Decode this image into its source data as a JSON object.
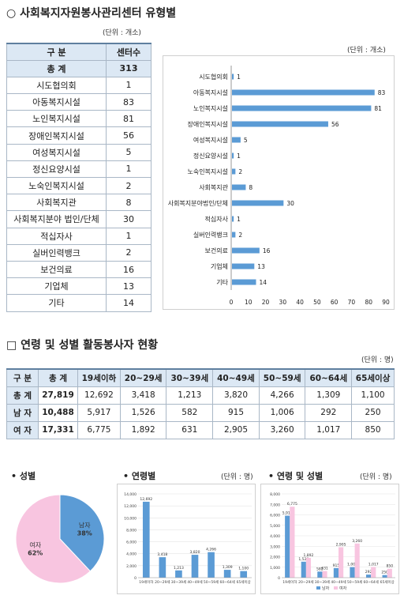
{
  "section1": {
    "title": "○ 사회복지자원봉사관리센터 유형별",
    "table_unit": "(단위 : 개소)",
    "chart_unit": "(단위 : 개소)",
    "headers": [
      "구    분",
      "센터수"
    ],
    "total": {
      "label": "총    계",
      "value": "313"
    },
    "rows": [
      {
        "label": "시도협의회",
        "value": "1"
      },
      {
        "label": "아동복지시설",
        "value": "83"
      },
      {
        "label": "노인복지시설",
        "value": "81"
      },
      {
        "label": "장애인복지시설",
        "value": "56"
      },
      {
        "label": "여성복지시설",
        "value": "5"
      },
      {
        "label": "정신요양시설",
        "value": "1"
      },
      {
        "label": "노숙인복지시설",
        "value": "2"
      },
      {
        "label": "사회복지관",
        "value": "8"
      },
      {
        "label": "사회복지분야 법인/단체",
        "value": "30"
      },
      {
        "label": "적십자사",
        "value": "1"
      },
      {
        "label": "실버인력뱅크",
        "value": "2"
      },
      {
        "label": "보건의료",
        "value": "16"
      },
      {
        "label": "기업체",
        "value": "13"
      },
      {
        "label": "기타",
        "value": "14"
      }
    ]
  },
  "section2": {
    "title": "□ 연령 및 성별 활동봉사자 현황",
    "unit": "(단위 : 명)",
    "headers": [
      "구 분",
      "총  계",
      "19세이하",
      "20~29세",
      "30~39세",
      "40~49세",
      "50~59세",
      "60~64세",
      "65세이상"
    ],
    "rows": [
      {
        "label": "총 계",
        "cells": [
          "27,819",
          "12,692",
          "3,418",
          "1,213",
          "3,820",
          "4,266",
          "1,309",
          "1,100"
        ]
      },
      {
        "label": "남 자",
        "cells": [
          "10,488",
          "5,917",
          "1,526",
          "582",
          "915",
          "1,006",
          "292",
          "250"
        ]
      },
      {
        "label": "여 자",
        "cells": [
          "17,331",
          "6,775",
          "1,892",
          "631",
          "2,905",
          "3,260",
          "1,017",
          "850"
        ]
      }
    ]
  },
  "bottom": {
    "gender_title": "• 성별",
    "age_title": "• 연령별",
    "age_unit": "(단위 : 명)",
    "agegender_title": "• 연령 및 성별",
    "agegender_unit": "(단위 : 명)"
  },
  "colors": {
    "bar": "#5b9bd5",
    "female": "#f8c5e0",
    "male": "#5b9bd5",
    "header": "#dce8f4"
  },
  "chart_data": [
    {
      "type": "bar",
      "orientation": "horizontal",
      "categories": [
        "시도협의회",
        "아동복지시설",
        "노인복지시설",
        "장애인복지시설",
        "여성복지시설",
        "정신요양시설",
        "노숙인복지시설",
        "사회복지관",
        "사회복지분야법인/단체",
        "적십자사",
        "실버인력뱅크",
        "보건의료",
        "기업체",
        "기타"
      ],
      "values": [
        1,
        83,
        81,
        56,
        5,
        1,
        2,
        8,
        30,
        1,
        2,
        16,
        13,
        14
      ],
      "xlim": [
        0,
        90
      ],
      "xticks": [
        0,
        10,
        20,
        30,
        40,
        50,
        60,
        70,
        80,
        90
      ]
    },
    {
      "type": "pie",
      "slices": [
        {
          "name": "남자",
          "value": 38,
          "label": "38%"
        },
        {
          "name": "여자",
          "value": 62,
          "label": "62%"
        }
      ]
    },
    {
      "type": "bar",
      "categories": [
        "19세이하",
        "20~29세",
        "30~39세",
        "40~49세",
        "50~59세",
        "60~64세",
        "65세이상"
      ],
      "values": [
        12692,
        3418,
        1213,
        3820,
        4266,
        1309,
        1100
      ],
      "labels": [
        "12,692",
        "3,418",
        "1,213",
        "3,820",
        "4,266",
        "1,309",
        "1,100"
      ],
      "ylim": [
        0,
        14000
      ],
      "yticks": [
        "0",
        "2,000",
        "4,000",
        "6,000",
        "8,000",
        "10,000",
        "12,000",
        "14,000"
      ]
    },
    {
      "type": "bar",
      "categories": [
        "19세이하",
        "20~29세",
        "30~39세",
        "40~49세",
        "50~59세",
        "60~64세",
        "65세이상"
      ],
      "series": [
        {
          "name": "남자",
          "values": [
            5917,
            1526,
            582,
            915,
            1006,
            292,
            250
          ],
          "labels": [
            "5,917",
            "1,526",
            "582",
            "915",
            "1,006",
            "292",
            "250"
          ]
        },
        {
          "name": "여자",
          "values": [
            6775,
            1892,
            631,
            2905,
            3260,
            1017,
            850
          ],
          "labels": [
            "6,775",
            "1,892",
            "631",
            "2,905",
            "3,260",
            "1,017",
            "850"
          ]
        }
      ],
      "ylim": [
        0,
        8000
      ],
      "yticks": [
        "0",
        "1,000",
        "2,000",
        "3,000",
        "4,000",
        "5,000",
        "6,000",
        "7,000",
        "8,000"
      ],
      "legend": [
        "남자",
        "여자"
      ]
    }
  ]
}
